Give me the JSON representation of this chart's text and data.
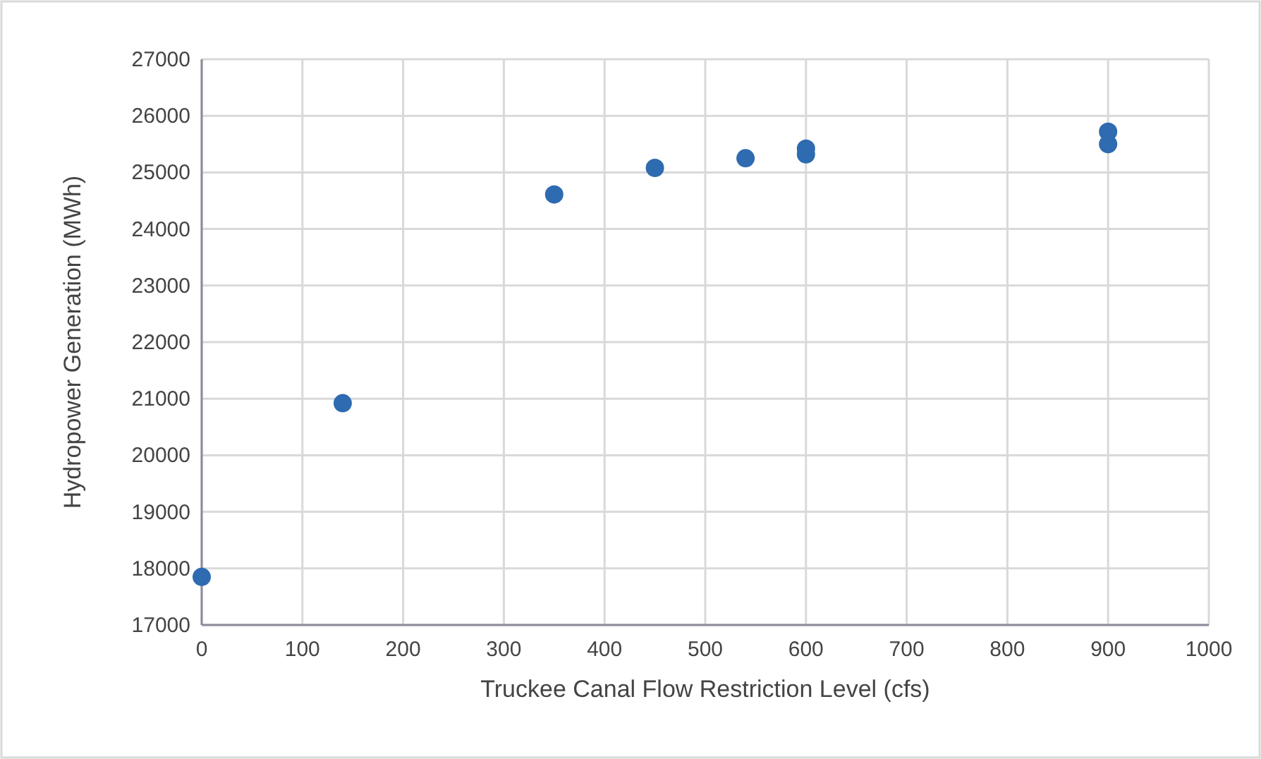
{
  "chart_data": {
    "type": "scatter",
    "xlabel": "Truckee Canal Flow Restriction Level (cfs)",
    "ylabel": "Hydropower Generation (MWh)",
    "x": [
      0,
      140,
      350,
      450,
      540,
      600,
      600,
      900,
      900
    ],
    "series": [
      {
        "color": "#2e6bb0",
        "values": [
          17850,
          20920,
          24610,
          25080,
          25250,
          25420,
          25320,
          25720,
          25500
        ]
      }
    ],
    "xlim": [
      0,
      1000
    ],
    "xticks": [
      0,
      100,
      200,
      300,
      400,
      500,
      600,
      700,
      800,
      900,
      1000
    ],
    "ylim": [
      17000,
      27000
    ],
    "yticks": [
      17000,
      18000,
      19000,
      20000,
      21000,
      22000,
      23000,
      24000,
      25000,
      26000,
      27000
    ],
    "grid": true,
    "marker": "circle"
  }
}
